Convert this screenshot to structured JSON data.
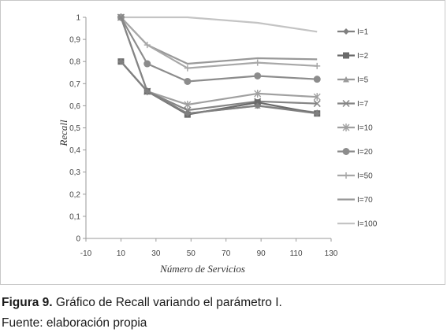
{
  "chart_data": {
    "type": "line",
    "xlabel": "Número de Servicios",
    "ylabel": "Recall",
    "xlim": [
      -10,
      130
    ],
    "ylim": [
      0,
      1
    ],
    "x_ticks": [
      "-10",
      "10",
      "30",
      "50",
      "70",
      "90",
      "110",
      "130"
    ],
    "y_ticks": [
      "0",
      "0,1",
      "0,2",
      "0,3",
      "0,4",
      "0,5",
      "0,6",
      "0,7",
      "0,8",
      "0,9",
      "1"
    ],
    "grid": false,
    "legend_position": "right",
    "x": [
      10,
      25,
      48,
      88,
      122
    ],
    "series": [
      {
        "name": "I=1",
        "marker": "diamond",
        "color": "#808080",
        "values": [
          0.8,
          0.665,
          0.565,
          0.6,
          0.565
        ]
      },
      {
        "name": "I=2",
        "marker": "square",
        "color": "#6a6a6a",
        "values": [
          0.8,
          0.665,
          0.56,
          0.615,
          0.565
        ]
      },
      {
        "name": "I=5",
        "marker": "triangle",
        "color": "#9a9a9a",
        "values": [
          0.8,
          0.665,
          0.565,
          0.6,
          0.57
        ]
      },
      {
        "name": "I=7",
        "marker": "x",
        "color": "#858585",
        "values": [
          1.0,
          0.665,
          0.58,
          0.62,
          0.61
        ]
      },
      {
        "name": "I=10",
        "marker": "star",
        "color": "#a0a0a0",
        "values": [
          1.0,
          0.665,
          0.605,
          0.655,
          0.64
        ]
      },
      {
        "name": "I=20",
        "marker": "circle",
        "color": "#8c8c8c",
        "values": [
          1.0,
          0.79,
          0.71,
          0.735,
          0.72
        ]
      },
      {
        "name": "I=50",
        "marker": "plus",
        "color": "#a8a8a8",
        "values": [
          1.0,
          0.875,
          0.77,
          0.795,
          0.78
        ]
      },
      {
        "name": "I=70",
        "marker": "none",
        "color": "#999999",
        "values": [
          1.0,
          0.875,
          0.79,
          0.815,
          0.81
        ]
      },
      {
        "name": "I=100",
        "marker": "none",
        "color": "#c4c4c4",
        "values": [
          1.0,
          1.0,
          1.0,
          0.975,
          0.935
        ]
      }
    ]
  },
  "caption": {
    "figure_label": "Figura 9.",
    "figure_text": " Gráfico de Recall variando el parámetro I.",
    "source": "Fuente: elaboración propia"
  }
}
